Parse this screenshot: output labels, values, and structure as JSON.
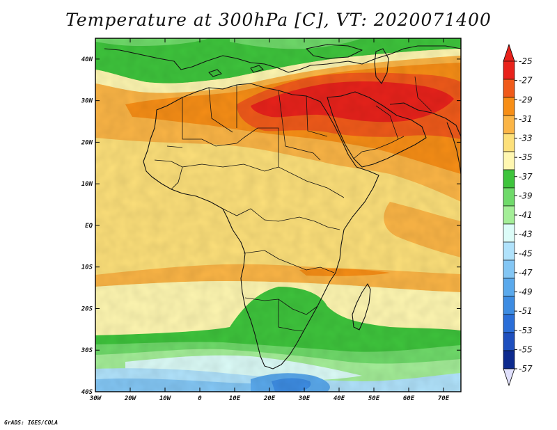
{
  "title": "Temperature at 300hPa [C], VT: 2020071400",
  "footer": "GrADS: IGES/COLA",
  "chart_data": {
    "type": "heatmap",
    "title": "Temperature at 300hPa [C], VT: 2020071400",
    "x_ticks": [
      "30W",
      "20W",
      "10W",
      "0",
      "10E",
      "20E",
      "30E",
      "40E",
      "50E",
      "60E",
      "70E"
    ],
    "y_ticks": [
      "40N",
      "30N",
      "20N",
      "10N",
      "EQ",
      "10S",
      "20S",
      "30S",
      "40S"
    ],
    "lon_range": [
      -30,
      75
    ],
    "lat_range": [
      -40,
      45
    ],
    "colorbar": {
      "labels": [
        "-25",
        "-27",
        "-29",
        "-31",
        "-33",
        "-35",
        "-37",
        "-39",
        "-41",
        "-43",
        "-45",
        "-47",
        "-49",
        "-51",
        "-53",
        "-55",
        "-57"
      ],
      "colors": [
        "#e8221b",
        "#f05a1a",
        "#f78e16",
        "#fbb546",
        "#fde07a",
        "#fff7b1",
        "#3ec43c",
        "#6fda6a",
        "#a4ee98",
        "#dcfcf8",
        "#b0e2fb",
        "#83c6f4",
        "#5aa9ec",
        "#3d8ce2",
        "#2a6ed8",
        "#1e4fbe",
        "#0d2a8e"
      ],
      "top_cap": "#e8221b",
      "bottom_cap": "#e0e0fc"
    }
  }
}
